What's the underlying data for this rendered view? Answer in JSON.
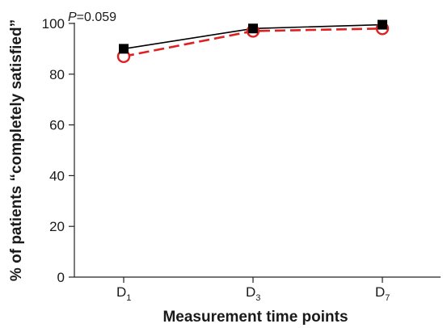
{
  "chart_data": {
    "type": "line",
    "title": "",
    "xlabel": "Measurement time points",
    "ylabel": "% of patients “completely satisfied”",
    "categories": [
      {
        "base": "D",
        "sub": "1"
      },
      {
        "base": "D",
        "sub": "3"
      },
      {
        "base": "D",
        "sub": "7"
      }
    ],
    "ylim": [
      0,
      100
    ],
    "yticks": [
      "0",
      "20",
      "40",
      "60",
      "80",
      "100"
    ],
    "grid": false,
    "series": [
      {
        "values": [
          90,
          98,
          99.5
        ],
        "color": "#000000",
        "line_style": "solid",
        "marker": "filled-square"
      },
      {
        "values": [
          87,
          97,
          98
        ],
        "color": "#e02020",
        "line_style": "dashed",
        "marker": "open-circle"
      }
    ],
    "annotation": {
      "italic": "P",
      "rest": "=0.059"
    }
  }
}
